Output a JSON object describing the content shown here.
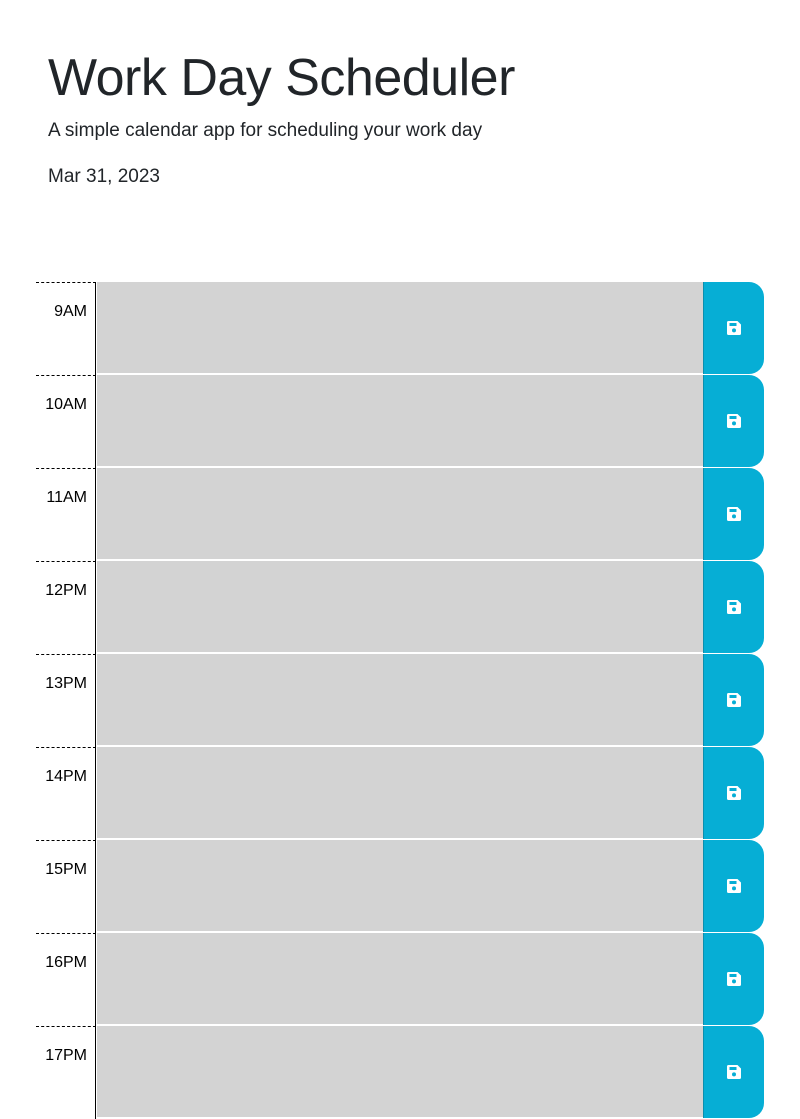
{
  "header": {
    "title": "Work Day Scheduler",
    "subtitle": "A simple calendar app for scheduling your work day",
    "current_date": "Mar 31, 2023"
  },
  "colors": {
    "past_block": "#d3d3d3",
    "save_button": "#06aed5",
    "text": "#212529"
  },
  "timeblocks": [
    {
      "hour": "9AM",
      "description": ""
    },
    {
      "hour": "10AM",
      "description": ""
    },
    {
      "hour": "11AM",
      "description": ""
    },
    {
      "hour": "12PM",
      "description": ""
    },
    {
      "hour": "13PM",
      "description": ""
    },
    {
      "hour": "14PM",
      "description": ""
    },
    {
      "hour": "15PM",
      "description": ""
    },
    {
      "hour": "16PM",
      "description": ""
    },
    {
      "hour": "17PM",
      "description": ""
    }
  ],
  "icons": {
    "save": "floppy-disk-icon"
  }
}
